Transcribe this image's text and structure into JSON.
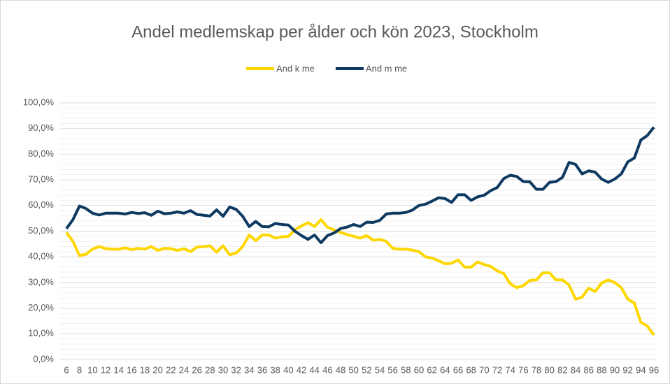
{
  "chart_data": {
    "type": "line",
    "title": "Andel medlemskap per ålder och kön 2023, Stockholm",
    "categories": [
      6,
      null,
      8,
      null,
      10,
      null,
      12,
      null,
      14,
      null,
      16,
      null,
      18,
      null,
      20,
      null,
      22,
      null,
      24,
      null,
      26,
      null,
      28,
      null,
      30,
      null,
      32,
      null,
      34,
      null,
      36,
      null,
      38,
      null,
      40,
      null,
      42,
      null,
      44,
      null,
      46,
      null,
      48,
      null,
      50,
      null,
      52,
      null,
      54,
      null,
      56,
      null,
      58,
      null,
      60,
      null,
      62,
      null,
      64,
      null,
      66,
      null,
      68,
      null,
      70,
      null,
      72,
      null,
      74,
      null,
      76,
      null,
      78,
      null,
      80,
      null,
      82,
      null,
      84,
      null,
      86,
      null,
      88,
      null,
      90,
      null,
      92,
      null,
      94,
      null,
      96
    ],
    "series": [
      {
        "name": "And k me",
        "color": "#ffd700",
        "values": [
          49.5,
          46,
          40.5,
          41,
          43,
          44,
          43.2,
          43,
          43,
          43.5,
          42.8,
          43.3,
          43,
          44,
          42.5,
          43.3,
          43.2,
          42.5,
          43.2,
          42,
          43.8,
          44,
          44.3,
          41.8,
          44.3,
          40.8,
          41.5,
          44,
          48.5,
          46.3,
          48.5,
          48.5,
          47.3,
          47.8,
          48,
          50.5,
          52,
          53.3,
          51.8,
          54.5,
          51.5,
          50.5,
          49.5,
          48.7,
          48,
          47.3,
          48.3,
          46.5,
          46.8,
          46,
          43.3,
          43,
          43,
          42.6,
          42,
          40,
          39.5,
          38.5,
          37.3,
          37.5,
          38.8,
          36,
          36,
          38,
          37,
          36.3,
          34.5,
          33.5,
          29.5,
          28,
          28.8,
          30.8,
          31,
          33.8,
          33.8,
          31,
          31,
          29,
          23.5,
          24.3,
          27.8,
          26.5,
          29.8,
          31,
          30,
          28,
          23.5,
          22,
          14.5,
          13,
          9.5
        ]
      },
      {
        "name": "And m  me",
        "color": "#0e3a61",
        "values": [
          51,
          54.5,
          59.8,
          58.8,
          57,
          56.3,
          57,
          57,
          57,
          56.7,
          57.3,
          56.9,
          57.2,
          56.2,
          57.8,
          56.8,
          57,
          57.5,
          57,
          58,
          56.5,
          56.2,
          55.9,
          58.3,
          55.8,
          59.4,
          58.5,
          55.8,
          51.8,
          53.8,
          51.8,
          51.7,
          53,
          52.6,
          52.4,
          50,
          48.3,
          46.8,
          48.5,
          45.5,
          48.3,
          49.3,
          51,
          51.6,
          52.6,
          51.8,
          53.5,
          53.4,
          54.2,
          56.7,
          57,
          57,
          57.3,
          58.2,
          60,
          60.5,
          61.7,
          63,
          62.7,
          61.2,
          64.2,
          64.2,
          62,
          63.4,
          64,
          65.8,
          67,
          70.5,
          71.8,
          71.3,
          69.3,
          69.2,
          66.3,
          66.3,
          69,
          69.3,
          71,
          76.8,
          76,
          72.3,
          73.5,
          73,
          70.3,
          69,
          70.3,
          72.3,
          77,
          78.5,
          85.5,
          87.3,
          90.5
        ]
      }
    ],
    "ylim": [
      0,
      100
    ],
    "yticks": [
      {
        "value": 0,
        "label": "0,0%"
      },
      {
        "value": 10,
        "label": "10,0%"
      },
      {
        "value": 20,
        "label": "20,0%"
      },
      {
        "value": 30,
        "label": "30,0%"
      },
      {
        "value": 40,
        "label": "40,0%"
      },
      {
        "value": 50,
        "label": "50,0%"
      },
      {
        "value": 60,
        "label": "60,0%"
      },
      {
        "value": 70,
        "label": "70,0%"
      },
      {
        "value": 80,
        "label": "80,0%"
      },
      {
        "value": 90,
        "label": "90,0%"
      },
      {
        "value": 100,
        "label": "100,0%"
      }
    ],
    "grid": true,
    "minor_grid": true,
    "legend": "top"
  }
}
